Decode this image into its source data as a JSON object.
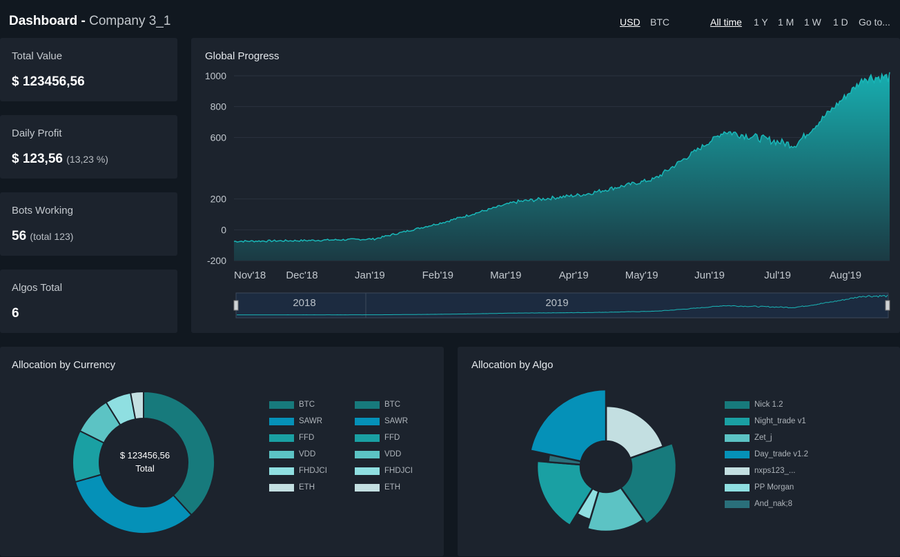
{
  "header": {
    "title_bold": "Dashboard -",
    "company": "Company 3_1",
    "currency_options": [
      {
        "label": "USD",
        "active": true
      },
      {
        "label": "BTC",
        "active": false
      }
    ],
    "range_options": [
      {
        "label": "All time",
        "active": true
      },
      {
        "label": "1 Y",
        "active": false
      },
      {
        "label": "1 M",
        "active": false
      },
      {
        "label": "1 W",
        "active": false
      },
      {
        "label": "1 D",
        "active": false
      },
      {
        "label": "Go to...",
        "active": false
      }
    ]
  },
  "stats": [
    {
      "label": "Total Value",
      "value": "$ 123456,56",
      "sub": ""
    },
    {
      "label": "Daily Profit",
      "value": "$ 123,56",
      "sub": "(13,23 %)"
    },
    {
      "label": "Bots Working",
      "value": "56",
      "sub": "(total 123)"
    },
    {
      "label": "Algos Total",
      "value": "6",
      "sub": ""
    }
  ],
  "global_progress": {
    "title": "Global Progress",
    "navigator_years": [
      "2018",
      "2019"
    ]
  },
  "allocation_currency": {
    "title": "Allocation by Currency",
    "center_value": "$ 123456,56",
    "center_label": "Total",
    "legend_col1": [
      "BTC",
      "SAWR",
      "FFD",
      "VDD",
      "FHDJCI",
      "ETH"
    ],
    "legend_col2": [
      "BTC",
      "SAWR",
      "FFD",
      "VDD",
      "FHDJCI",
      "ETH"
    ]
  },
  "allocation_algo": {
    "title": "Allocation by Algo",
    "legend": [
      "Nick 1.2",
      "Night_trade v1",
      "Zet_j",
      "Day_trade v1.2",
      "nxps123_...",
      "PP Morgan",
      "And_nak;8"
    ]
  },
  "colors": {
    "accent": "#15a3a6",
    "teal_dark": "#177a7c",
    "blue": "#0591b8",
    "teal": "#1aa0a3",
    "teal_light": "#5cc3c4",
    "cyan_light": "#8fdfe1",
    "pale": "#c3dfe1",
    "slate": "#2a6f7a"
  },
  "chart_data": [
    {
      "type": "area",
      "title": "Global Progress",
      "x": [
        "Nov'18",
        "Dec'18",
        "Jan'19",
        "Feb'19",
        "Mar'19",
        "Apr'19",
        "May'19",
        "Jun'19",
        "Jul'19",
        "Aug'19"
      ],
      "series": [
        {
          "values": [
            -75,
            -70,
            -60,
            50,
            180,
            230,
            330,
            640,
            550,
            990
          ]
        }
      ],
      "yticks": [
        1000,
        800,
        600,
        200,
        0,
        -200
      ],
      "ylim": [
        -200,
        1000
      ]
    },
    {
      "type": "pie",
      "title": "Allocation by Currency",
      "labels": [
        "BTC",
        "SAWR",
        "FFD",
        "VDD",
        "FHDJCI",
        "ETH"
      ],
      "values": [
        39,
        33,
        12,
        9,
        6,
        3
      ]
    },
    {
      "type": "pie",
      "title": "Allocation by Algo",
      "labels": [
        "Nick 1.2",
        "Night_trade v1",
        "Zet_j",
        "Day_trade v1.2",
        "nxps123_...",
        "PP Morgan",
        "And_nak;8"
      ],
      "values": [
        20,
        17,
        14,
        21,
        19,
        4,
        2
      ]
    }
  ]
}
